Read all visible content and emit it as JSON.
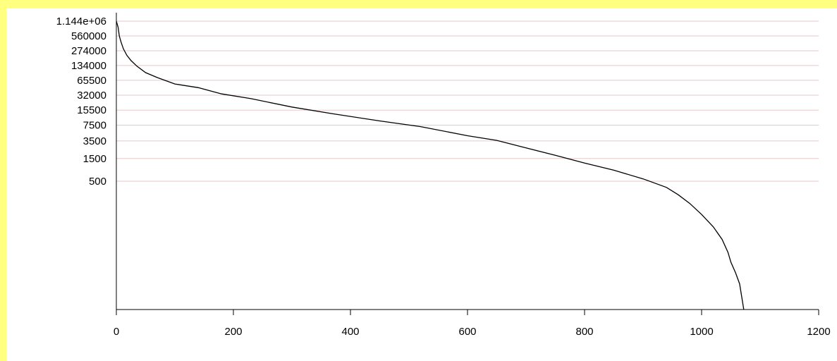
{
  "chart_data": {
    "type": "line",
    "title": "",
    "xlabel": "",
    "ylabel": "",
    "xlim": [
      0,
      1200
    ],
    "x_ticks": [
      0,
      200,
      400,
      600,
      800,
      1000,
      1200
    ],
    "x_tick_labels": [
      "0",
      "200",
      "400",
      "600",
      "800",
      "1000",
      "1200"
    ],
    "y_scale": "log",
    "y_ticks": [
      1144000,
      560000,
      274000,
      134000,
      65500,
      32000,
      15500,
      7500,
      3500,
      1500,
      500
    ],
    "y_tick_labels": [
      "1.144e+06",
      "560000",
      "274000",
      "134000",
      "65500",
      "32000",
      "15500",
      "7500",
      "3500",
      "1500",
      "500"
    ],
    "grid": "horizontal",
    "colors": {
      "background": "#ffff80",
      "panel": "#ffffff",
      "grid": "#e6c8c8",
      "line": "#000000"
    },
    "series": [
      {
        "x": [
          0,
          3,
          5,
          8,
          12,
          18,
          25,
          35,
          50,
          70,
          100,
          140,
          180,
          230,
          300,
          370,
          450,
          520,
          600,
          650,
          700,
          750,
          800,
          850,
          900,
          940,
          960,
          980,
          1000,
          1020,
          1035,
          1045,
          1050,
          1058,
          1065,
          1072
        ],
        "y": [
          1144000,
          850000,
          560000,
          420000,
          300000,
          220000,
          170000,
          130000,
          95000,
          75000,
          55000,
          46000,
          34000,
          27000,
          18000,
          13000,
          9200,
          7000,
          4500,
          3600,
          2500,
          1750,
          1200,
          850,
          560,
          370,
          260,
          170,
          100,
          55,
          30,
          16,
          10,
          6,
          3.5,
          1
        ]
      }
    ]
  }
}
